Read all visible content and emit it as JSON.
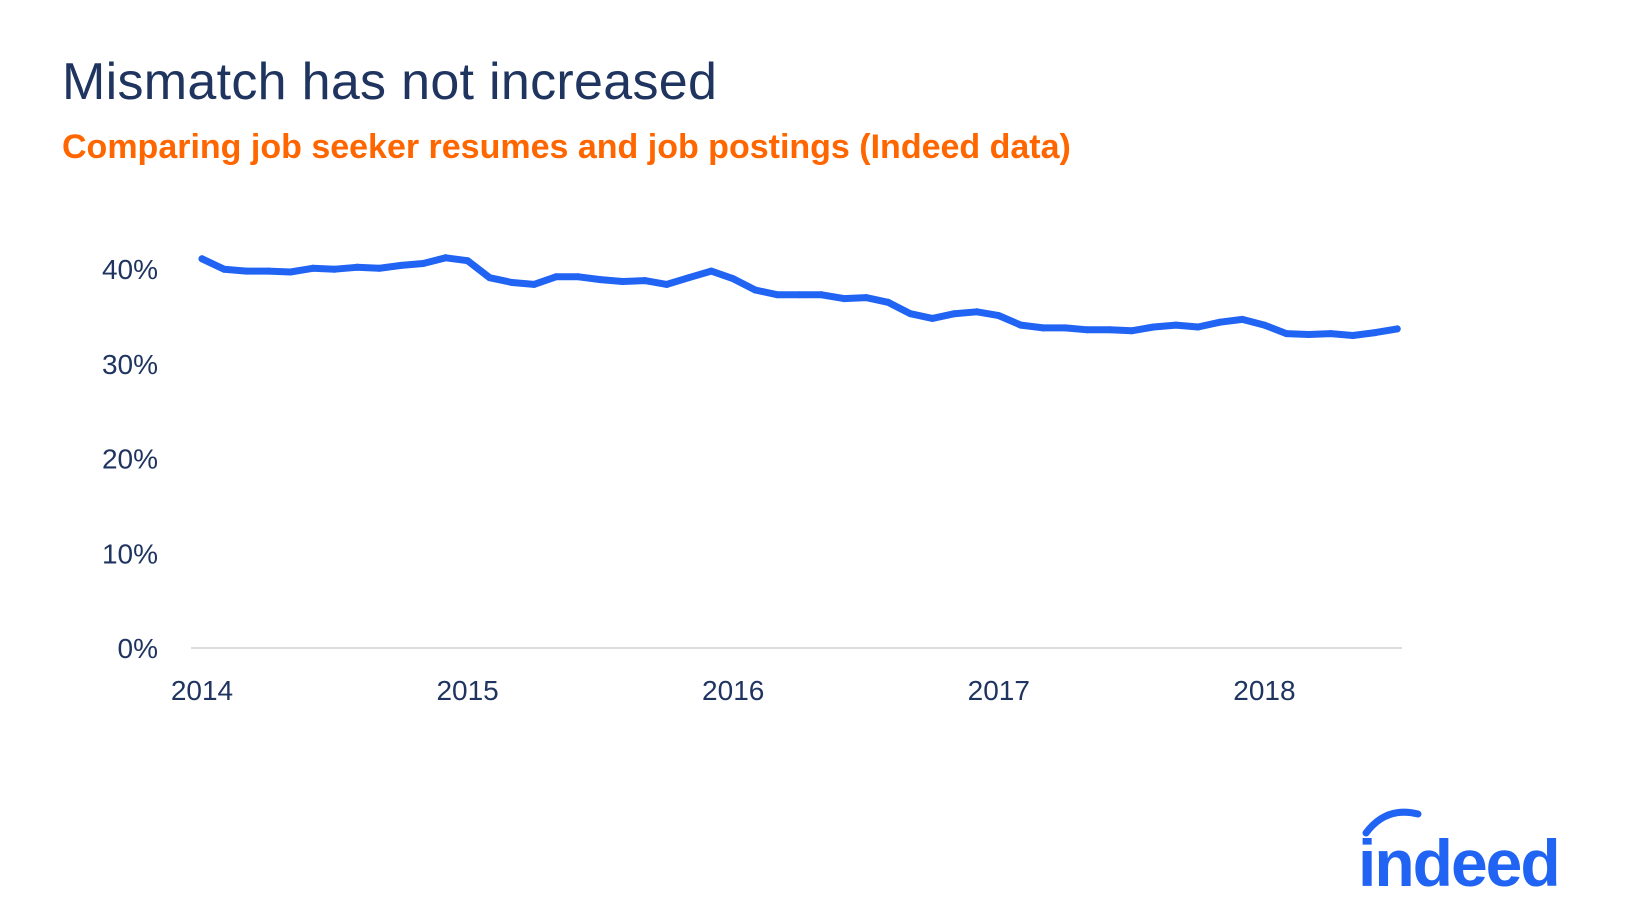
{
  "title": "Mismatch has not increased",
  "subtitle": "Comparing job seeker resumes and job postings (Indeed data)",
  "brand": {
    "name": "indeed",
    "color": "#2164f3",
    "icon": "indeed-logo-arc"
  },
  "colors": {
    "title": "#1f3560",
    "subtitle": "#ff6600",
    "line": "#2164f3",
    "axis": "#dddddd",
    "tick_text": "#1f3560"
  },
  "chart_data": {
    "type": "line",
    "title": "Mismatch has not increased",
    "subtitle": "Comparing job seeker resumes and job postings (Indeed data)",
    "xlabel": "",
    "ylabel": "",
    "x_ticks": [
      "2014",
      "2015",
      "2016",
      "2017",
      "2018"
    ],
    "y_ticks": [
      "0%",
      "10%",
      "20%",
      "30%",
      "40%"
    ],
    "ylim": [
      0,
      42
    ],
    "xlim": [
      2014.0,
      2018.583
    ],
    "grid": false,
    "legend": "none",
    "series": [
      {
        "x": [
          2014.0,
          2014.083,
          2014.167,
          2014.25,
          2014.333,
          2014.417,
          2014.5,
          2014.583,
          2014.667,
          2014.75,
          2014.833,
          2014.917,
          2015.0,
          2015.083,
          2015.167,
          2015.25,
          2015.333,
          2015.417,
          2015.5,
          2015.583,
          2015.667,
          2015.75,
          2015.833,
          2015.917,
          2016.0,
          2016.083,
          2016.167,
          2016.25,
          2016.333,
          2016.417,
          2016.5,
          2016.583,
          2016.667,
          2016.75,
          2016.833,
          2016.917,
          2017.0,
          2017.083,
          2017.167,
          2017.25,
          2017.333,
          2017.417,
          2017.5,
          2017.583,
          2017.667,
          2017.75,
          2017.833,
          2017.917,
          2018.0,
          2018.083,
          2018.167,
          2018.25,
          2018.333,
          2018.417,
          2018.5
        ],
        "values": [
          41.1,
          40.0,
          39.8,
          39.8,
          39.7,
          40.1,
          40.0,
          40.2,
          40.1,
          40.4,
          40.6,
          41.2,
          40.9,
          39.1,
          38.6,
          38.4,
          39.2,
          39.2,
          38.9,
          38.7,
          38.8,
          38.4,
          39.1,
          39.8,
          39.0,
          37.8,
          37.3,
          37.3,
          37.3,
          36.9,
          37.0,
          36.5,
          35.3,
          34.8,
          35.3,
          35.5,
          35.1,
          34.1,
          33.8,
          33.8,
          33.6,
          33.6,
          33.5,
          33.9,
          34.1,
          33.9,
          34.4,
          34.7,
          34.1,
          33.2,
          33.1,
          33.2,
          33.0,
          33.3,
          33.7
        ]
      }
    ]
  }
}
